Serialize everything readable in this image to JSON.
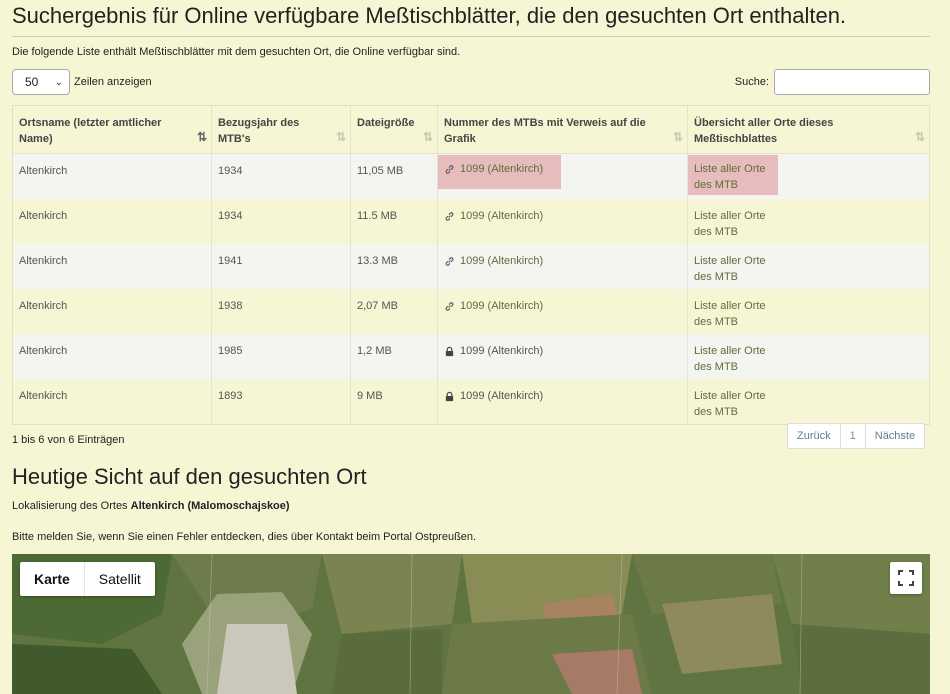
{
  "header": {
    "title": "Suchergebnis für Online verfügbare Meßtischblätter, die den gesuchten Ort enthalten.",
    "intro": "Die folgende Liste enthält Meßtischblätter mit dem gesuchten Ort, die Online verfügbar sind."
  },
  "controls": {
    "length_value": "50",
    "length_label": "Zeilen anzeigen",
    "search_label": "Suche:",
    "search_value": ""
  },
  "table": {
    "columns": [
      "Ortsname (letzter amtlicher Name)",
      "Bezugsjahr des MTB's",
      "Dateigröße",
      "Nummer des MTBs mit Verweis auf die Grafik",
      "Übersicht aller Orte dieses Meßtischblattes"
    ],
    "rows": [
      {
        "ort": "Altenkirch",
        "jahr": "1934",
        "groesse": "11,05 MB",
        "mtb": "1099 (Altenkirch)",
        "icon": "link-icon",
        "liste": "Liste aller Orte des MTB"
      },
      {
        "ort": "Altenkirch",
        "jahr": "1934",
        "groesse": "11.5 MB",
        "mtb": "1099 (Altenkirch)",
        "icon": "link-icon",
        "liste": "Liste aller Orte des MTB"
      },
      {
        "ort": "Altenkirch",
        "jahr": "1941",
        "groesse": "13.3 MB",
        "mtb": "1099 (Altenkirch)",
        "icon": "link-icon",
        "liste": "Liste aller Orte des MTB"
      },
      {
        "ort": "Altenkirch",
        "jahr": "1938",
        "groesse": "2,07 MB",
        "mtb": "1099 (Altenkirch)",
        "icon": "link-icon",
        "liste": "Liste aller Orte des MTB"
      },
      {
        "ort": "Altenkirch",
        "jahr": "1985",
        "groesse": "1,2 MB",
        "mtb": "1099 (Altenkirch)",
        "icon": "lock-icon",
        "liste": "Liste aller Orte des MTB"
      },
      {
        "ort": "Altenkirch",
        "jahr": "1893",
        "groesse": "9 MB",
        "mtb": "1099 (Altenkirch)",
        "icon": "lock-icon",
        "liste": "Liste aller Orte des MTB"
      }
    ]
  },
  "footer": {
    "info": "1 bis 6 von 6 Einträgen",
    "prev": "Zurück",
    "page": "1",
    "next": "Nächste"
  },
  "today": {
    "title": "Heutige Sicht auf den gesuchten Ort",
    "loc_prefix": "Lokalisierung des Ortes",
    "loc_name": "Altenkirch (Malomoschajskoe)",
    "report": "Bitte melden Sie, wenn Sie einen Fehler entdecken, dies über Kontakt beim Portal Ostpreußen."
  },
  "map": {
    "btn_map": "Karte",
    "btn_satellite": "Satellit"
  },
  "colors": {
    "background": "#f6f6d5",
    "link": "#5f6e3a",
    "highlight": "#e6bcbc"
  }
}
